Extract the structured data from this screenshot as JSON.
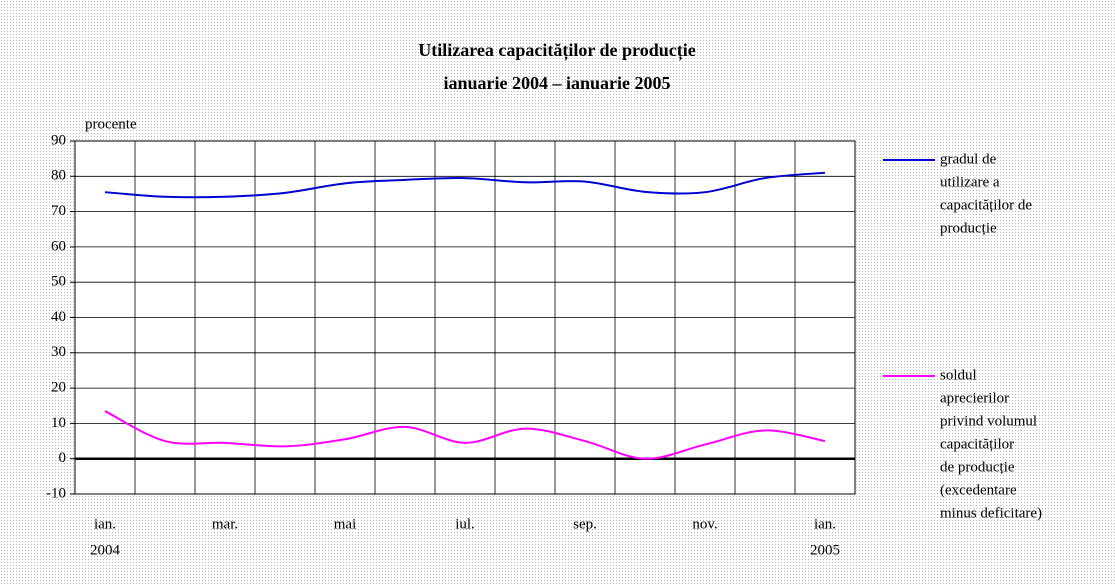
{
  "chart_data": {
    "type": "line",
    "title": "Utilizarea capacităților de producție",
    "subtitle": "ianuarie 2004 – ianuarie 2005",
    "y_label": "procente",
    "categories": [
      [
        "ian.",
        "2004"
      ],
      null,
      [
        "mar."
      ],
      null,
      [
        "mai"
      ],
      null,
      [
        "iul."
      ],
      null,
      [
        "sep."
      ],
      null,
      [
        "nov."
      ],
      null,
      [
        "ian.",
        "2005"
      ]
    ],
    "series": [
      {
        "name": [
          "gradul de",
          "utilizare a",
          "capacităților de",
          "producție"
        ],
        "color": "#0000d0",
        "values": [
          75.5,
          74.2,
          74.2,
          75.3,
          78,
          79,
          79.5,
          78.3,
          78.5,
          75.6,
          75.5,
          79.5,
          81
        ]
      },
      {
        "name": [
          "soldul",
          "aprecierilor",
          "privind volumul",
          "capacităților",
          "de producție",
          "(excedentare",
          "minus deficitare)"
        ],
        "color": "#ff00ff",
        "values": [
          13.5,
          5,
          4.5,
          3.5,
          5.5,
          9,
          4.5,
          8.5,
          5,
          0,
          4,
          8,
          5
        ]
      }
    ],
    "ylim": [
      -10,
      90
    ],
    "yticks": [
      -10,
      0,
      10,
      20,
      30,
      40,
      50,
      60,
      70,
      80,
      90
    ],
    "grid": true
  }
}
